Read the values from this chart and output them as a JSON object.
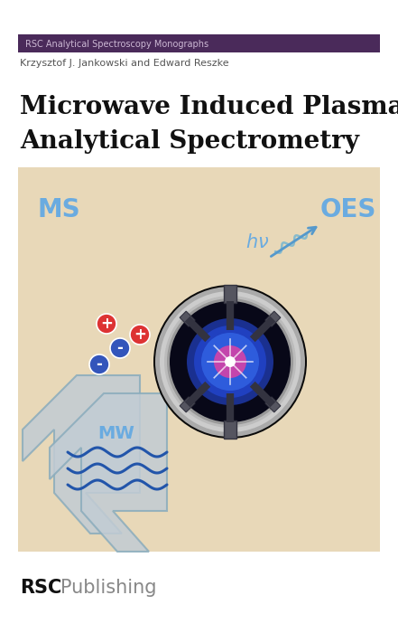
{
  "bg_color": "#ffffff",
  "panel_bg": "#e8d8b8",
  "header_bg": "#4a2a5a",
  "header_text": "RSC Analytical Spectroscopy Monographs",
  "header_text_color": "#ccb8d4",
  "author_text": "Krzysztof J. Jankowski and Edward Reszke",
  "title_line1": "Microwave Induced Plasma",
  "title_line2": "Analytical Spectrometry",
  "ms_color": "#6aabe0",
  "oes_color": "#6aabe0",
  "hv_color": "#6aabe0",
  "mw_label_color": "#6aabe0",
  "wave_color": "#2255aa",
  "ion_plus_color": "#dd3333",
  "ion_minus_color": "#3355bb",
  "arrow_oes_color": "#5599cc",
  "wavy_color": "#88bbcc",
  "mw_arrow_color": "#c8d0d8",
  "mw_arrow_edge": "#9aaabb"
}
